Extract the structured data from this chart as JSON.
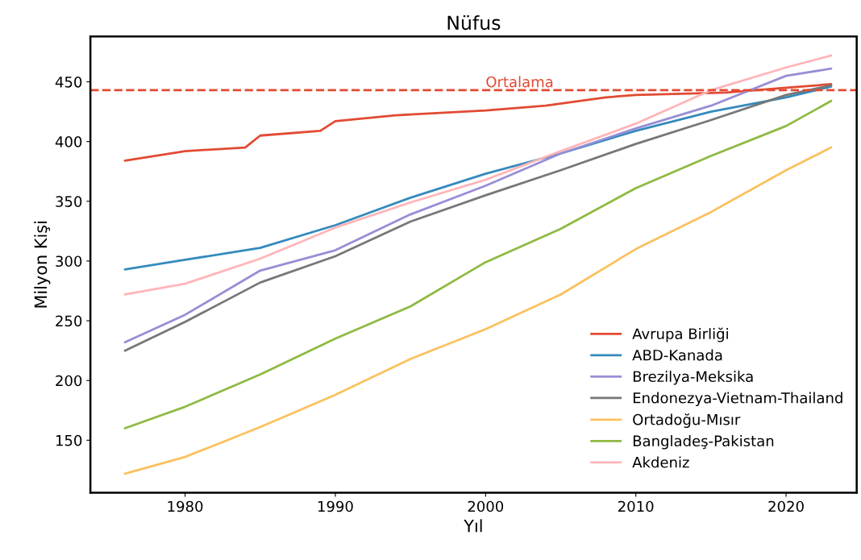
{
  "chart_data": {
    "type": "line",
    "title": "Nüfus",
    "xlabel": "Yıl",
    "ylabel": "Milyon Kişi",
    "x": [
      1976,
      1980,
      1985,
      1990,
      1995,
      2000,
      2005,
      2010,
      2015,
      2020,
      2023
    ],
    "series": [
      {
        "name": "Avrupa Birliği",
        "color": "#e24a33",
        "x": [
          1976,
          1980,
          1984,
          1985,
          1989,
          1990,
          1994,
          2000,
          2004,
          2008,
          2010,
          2016,
          2020,
          2023
        ],
        "values": [
          384,
          392,
          395,
          405,
          409,
          417,
          422,
          426,
          430,
          437,
          439,
          441,
          445,
          448
        ]
      },
      {
        "name": "ABD-Kanada",
        "color": "#348abd",
        "values": [
          293,
          301,
          311,
          330,
          353,
          373,
          390,
          409,
          425,
          437,
          446
        ]
      },
      {
        "name": "Brezilya-Meksika",
        "color": "#988ed5",
        "values": [
          232,
          255,
          292,
          309,
          339,
          363,
          390,
          411,
          430,
          455,
          461
        ]
      },
      {
        "name": "Endonezya-Vietnam-Thailand",
        "color": "#777777",
        "values": [
          225,
          249,
          282,
          304,
          333,
          355,
          376,
          398,
          418,
          439,
          447
        ]
      },
      {
        "name": "Ortadoğu-Mısır",
        "color": "#fbc15e",
        "values": [
          122,
          136,
          161,
          188,
          218,
          243,
          272,
          310,
          341,
          376,
          395
        ]
      },
      {
        "name": "Bangladeş-Pakistan",
        "color": "#8eba42",
        "values": [
          160,
          178,
          205,
          235,
          262,
          299,
          327,
          361,
          388,
          413,
          434
        ]
      },
      {
        "name": "Akdeniz",
        "color": "#ffb5b8",
        "values": [
          272,
          281,
          302,
          328,
          349,
          368,
          392,
          415,
          443,
          462,
          472
        ]
      }
    ],
    "ref_lines": [
      {
        "axis": "y",
        "value": 443,
        "label": "Ortalama",
        "color": "#e24a33",
        "line_style": "dashed"
      }
    ],
    "xlim": [
      1973.7,
      2024.7
    ],
    "ylim": [
      106,
      488
    ],
    "xticks": [
      1980,
      1990,
      2000,
      2010,
      2020
    ],
    "yticks": [
      150,
      200,
      250,
      300,
      350,
      400,
      450
    ],
    "grid": false,
    "legend": "right",
    "marker": "none",
    "line_style": "solid"
  }
}
